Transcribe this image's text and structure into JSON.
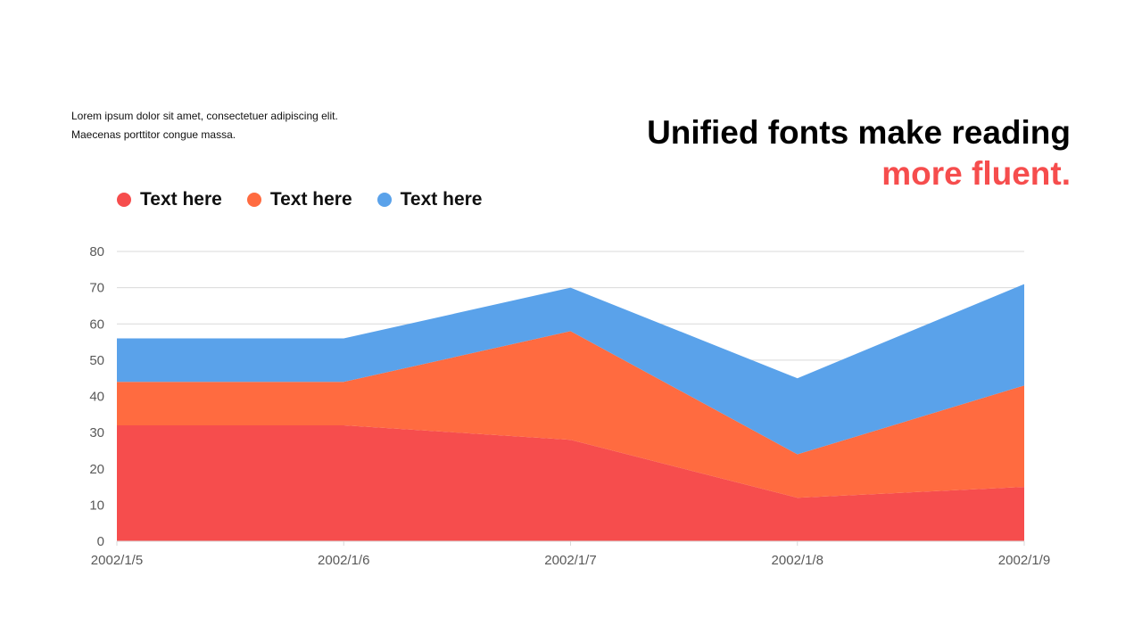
{
  "intro": {
    "line1": "Lorem ipsum dolor sit amet, consectetuer adipiscing elit.",
    "line2": "Maecenas porttitor congue massa."
  },
  "headline": {
    "line1": "Unified fonts make reading",
    "line2": "more fluent."
  },
  "chart_data": {
    "type": "area",
    "stacked": true,
    "categories": [
      "2002/1/5",
      "2002/1/6",
      "2002/1/7",
      "2002/1/8",
      "2002/1/9"
    ],
    "series": [
      {
        "name": "Text here",
        "color": "#f64d4d",
        "values": [
          32,
          32,
          28,
          12,
          15
        ]
      },
      {
        "name": "Text here",
        "color": "#ff6b40",
        "values": [
          12,
          12,
          30,
          12,
          28
        ]
      },
      {
        "name": "Text here",
        "color": "#5aa2ea",
        "values": [
          12,
          12,
          12,
          21,
          28
        ]
      }
    ],
    "ylim": [
      0,
      80
    ],
    "yticks": [
      0,
      10,
      20,
      30,
      40,
      50,
      60,
      70,
      80
    ],
    "grid": true,
    "legend_position": "top-left",
    "title": "",
    "xlabel": "",
    "ylabel": ""
  }
}
